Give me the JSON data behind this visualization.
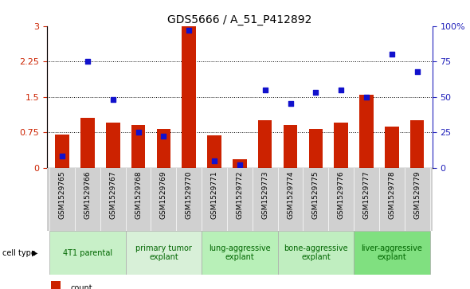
{
  "title": "GDS5666 / A_51_P412892",
  "samples": [
    "GSM1529765",
    "GSM1529766",
    "GSM1529767",
    "GSM1529768",
    "GSM1529769",
    "GSM1529770",
    "GSM1529771",
    "GSM1529772",
    "GSM1529773",
    "GSM1529774",
    "GSM1529775",
    "GSM1529776",
    "GSM1529777",
    "GSM1529778",
    "GSM1529779"
  ],
  "count_values": [
    0.7,
    1.05,
    0.95,
    0.9,
    0.82,
    3.0,
    0.68,
    0.18,
    1.0,
    0.9,
    0.82,
    0.95,
    1.55,
    0.87,
    1.0
  ],
  "percentile_values": [
    8,
    75,
    48,
    25,
    22,
    97,
    5,
    2,
    55,
    45,
    53,
    55,
    50,
    80,
    68
  ],
  "cell_types": [
    {
      "label": "4T1 parental",
      "start": 0,
      "end": 2,
      "color": "#c8f0c8"
    },
    {
      "label": "primary tumor\nexplant",
      "start": 3,
      "end": 5,
      "color": "#d8f0d8"
    },
    {
      "label": "lung-aggressive\nexplant",
      "start": 6,
      "end": 8,
      "color": "#b8f0b8"
    },
    {
      "label": "bone-aggressive\nexplant",
      "start": 9,
      "end": 11,
      "color": "#c0eec0"
    },
    {
      "label": "liver-aggressive\nexplant",
      "start": 12,
      "end": 14,
      "color": "#80e080"
    }
  ],
  "ylim_left": [
    0,
    3
  ],
  "ylim_right": [
    0,
    100
  ],
  "yticks_left": [
    0,
    0.75,
    1.5,
    2.25,
    3
  ],
  "yticks_right": [
    0,
    25,
    50,
    75,
    100
  ],
  "bar_color": "#cc2200",
  "dot_color": "#1111cc",
  "bg_color": "#ffffff",
  "left_axis_color": "#cc2200",
  "right_axis_color": "#2222bb",
  "sample_bg_color": "#d0d0d0",
  "legend_square_size": 8
}
